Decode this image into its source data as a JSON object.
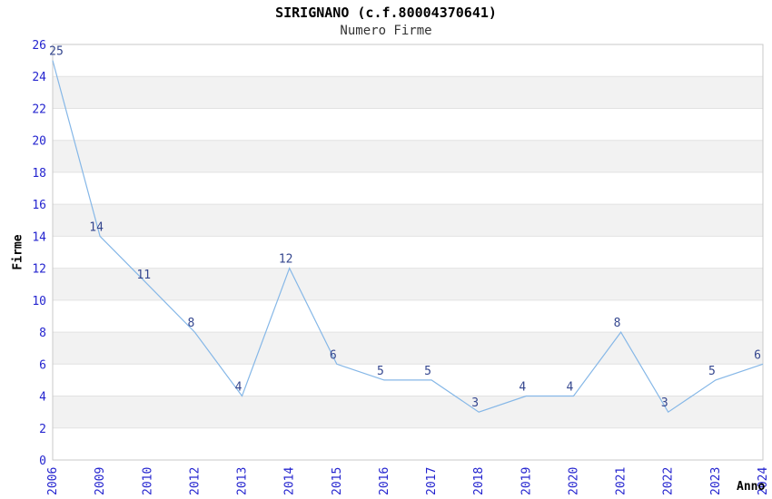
{
  "header": {
    "title": "SIRIGNANO (c.f.80004370641)",
    "subtitle": "Numero Firme"
  },
  "chart_data": {
    "type": "line",
    "title": "SIRIGNANO (c.f.80004370641)",
    "subtitle": "Numero Firme",
    "xlabel": "Anno",
    "ylabel": "Firme",
    "categories": [
      "2006",
      "2009",
      "2010",
      "2012",
      "2013",
      "2014",
      "2015",
      "2016",
      "2017",
      "2018",
      "2019",
      "2020",
      "2021",
      "2022",
      "2023",
      "2024"
    ],
    "values": [
      25,
      14,
      11,
      8,
      4,
      12,
      6,
      5,
      5,
      3,
      4,
      4,
      8,
      3,
      5,
      6
    ],
    "ylim": [
      0,
      26
    ],
    "ytick_step": 2,
    "grid": true,
    "legend_position": "none",
    "point_labels_shown": true,
    "colors": {
      "line": "#85b7e7",
      "tick_label": "#2424cf",
      "point_label": "#35478f",
      "band_gray": "#f2f2f2",
      "band_white": "#ffffff",
      "gridline": "#e2e2e2",
      "border": "#c9c9c9",
      "title": "#000000",
      "subtitle": "#333333"
    }
  }
}
